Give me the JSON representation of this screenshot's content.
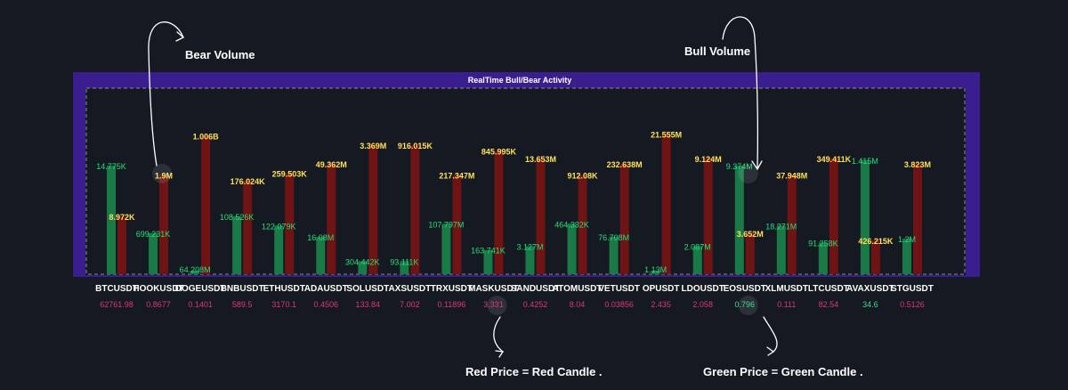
{
  "colors": {
    "background": "#151922",
    "frame": "#3a1d8f",
    "bull_bar": "#1a7a47",
    "bear_bar": "#6e1414",
    "bull_label": "#22e07a",
    "bear_label": "#ffe05a",
    "price_red": "#e0357a",
    "price_green": "#3ddc84"
  },
  "annotations": {
    "bear_volume": "Bear Volume",
    "bull_volume": "Bull Volume",
    "red_price_note": "Red Price = Red Candle .",
    "green_price_note": "Green Price = Green Candle ."
  },
  "chart_data": {
    "type": "bar",
    "title": "RealTime Bull/Bear Activity",
    "note": "Per-symbol bar heights are normalized independently; bull/bear values are the printed volume labels.",
    "categories": [
      "BTCUSDT",
      "HOOKUSDT",
      "DOGEUSDT",
      "BNBUSDT",
      "ETHUSDT",
      "ADAUSDT",
      "SOLUSDT",
      "AXSUSDT",
      "TRXUSDT",
      "MASKUSDT",
      "SANDUSDT",
      "ATOMUSDT",
      "VETUSDT",
      "OPUSDT",
      "LDOUSDT",
      "EOSUSDT",
      "XLMUSDT",
      "LTCUSDT",
      "AVAXUSDT",
      "STGUSDT"
    ],
    "series": [
      {
        "name": "Bull Volume",
        "values": [
          "14.775K",
          "699.231K",
          "64.208M",
          "108.526K",
          "122.079K",
          "16.08M",
          "304.442K",
          "93.111K",
          "107.797M",
          "163.741K",
          "3.127M",
          "464.332K",
          "76.708M",
          "1.13M",
          "2.087M",
          "9.374M",
          "18.271M",
          "91.258K",
          "1.415M",
          "1.2M"
        ],
        "relative_height": [
          0.58,
          0.22,
          0.02,
          0.31,
          0.26,
          0.2,
          0.07,
          0.07,
          0.27,
          0.13,
          0.15,
          0.27,
          0.2,
          0.02,
          0.15,
          0.58,
          0.26,
          0.17,
          0.61,
          0.19
        ]
      },
      {
        "name": "Bear Volume",
        "values": [
          "8.972K",
          "1.9M",
          "1.006B",
          "176.024K",
          "259.503K",
          "49.362M",
          "3.369M",
          "916.015K",
          "217.347M",
          "845.995K",
          "13.653M",
          "912.08K",
          "232.638M",
          "21.555M",
          "9.124M",
          "3.652M",
          "37.948M",
          "349.411K",
          "426.215K",
          "3.823M"
        ],
        "relative_height": [
          0.31,
          0.53,
          0.74,
          0.5,
          0.54,
          0.59,
          0.69,
          0.69,
          0.53,
          0.66,
          0.62,
          0.53,
          0.59,
          0.75,
          0.62,
          0.22,
          0.53,
          0.62,
          0.18,
          0.59
        ]
      }
    ],
    "prices": [
      "62761.98",
      "0.8677",
      "0.1401",
      "589.5",
      "3170.1",
      "0.4506",
      "133.84",
      "7.002",
      "0.11896",
      "3.331",
      "0.4252",
      "8.04",
      "0.03856",
      "2.435",
      "2.058",
      "0.796",
      "0.111",
      "82.54",
      "34.6",
      "0.5126"
    ],
    "price_direction": [
      "red",
      "red",
      "red",
      "red",
      "red",
      "red",
      "red",
      "red",
      "red",
      "red",
      "red",
      "red",
      "red",
      "red",
      "red",
      "green",
      "red",
      "red",
      "green",
      "red"
    ]
  }
}
